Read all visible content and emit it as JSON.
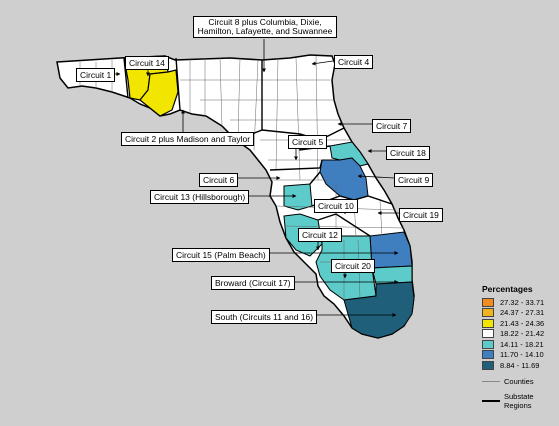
{
  "legend": {
    "title": "Percentages",
    "items": [
      {
        "range": "27.32 - 33.71",
        "color": "#f28c1c"
      },
      {
        "range": "24.37 - 27.31",
        "color": "#f0b41c"
      },
      {
        "range": "21.43 - 24.36",
        "color": "#f2e600"
      },
      {
        "range": "18.22 - 21.42",
        "color": "#ffffff"
      },
      {
        "range": "14.11 - 18.21",
        "color": "#5ccbc9"
      },
      {
        "range": "11.70 - 14.10",
        "color": "#3f7fbf"
      },
      {
        "range": "8.84 - 11.69",
        "color": "#1f5f7a"
      }
    ],
    "counties_label": "Counties",
    "substate_label": "Substate Regions"
  },
  "regions": [
    {
      "label": "Circuit 1",
      "level": "18.22 - 21.42"
    },
    {
      "label": "Circuit 14",
      "level": "21.43 - 24.36"
    },
    {
      "label": "Circuit 2 plus Madison and Taylor",
      "level": "21.43 - 24.36"
    },
    {
      "label": "Circuit 8 plus Columbia, Dixie, Hamilton, Lafayette, and Suwannee",
      "level": "18.22 - 21.42"
    },
    {
      "label": "Circuit 4",
      "level": "18.22 - 21.42"
    },
    {
      "label": "Circuit 7",
      "level": "18.22 - 21.42"
    },
    {
      "label": "Circuit 5",
      "level": "18.22 - 21.42"
    },
    {
      "label": "Circuit 18",
      "level": "14.11 - 18.21"
    },
    {
      "label": "Circuit 9",
      "level": "11.70 - 14.10"
    },
    {
      "label": "Circuit 6",
      "level": "18.22 - 21.42"
    },
    {
      "label": "Circuit 13 (Hillsborough)",
      "level": "14.11 - 18.21"
    },
    {
      "label": "Circuit 10",
      "level": "18.22 - 21.42"
    },
    {
      "label": "Circuit 19",
      "level": "18.22 - 21.42"
    },
    {
      "label": "Circuit 12",
      "level": "14.11 - 18.21"
    },
    {
      "label": "Circuit 15 (Palm Beach)",
      "level": "11.70 - 14.10"
    },
    {
      "label": "Circuit 20",
      "level": "14.11 - 18.21"
    },
    {
      "label": "Broward (Circuit 17)",
      "level": "14.11 - 18.21"
    },
    {
      "label": "South (Circuits 11 and 16)",
      "level": "8.84 - 11.69"
    }
  ],
  "labels": {
    "c1": "Circuit 1",
    "c14": "Circuit 14",
    "c2": "Circuit 2 plus Madison and Taylor",
    "c8_line1": "Circuit 8 plus Columbia, Dixie,",
    "c8_line2": "Hamilton, Lafayette, and Suwannee",
    "c4": "Circuit 4",
    "c7": "Circuit 7",
    "c5": "Circuit 5",
    "c18": "Circuit 18",
    "c9": "Circuit 9",
    "c6": "Circuit 6",
    "c13": "Circuit 13 (Hillsborough)",
    "c10": "Circuit 10",
    "c19": "Circuit 19",
    "c12": "Circuit 12",
    "c15": "Circuit 15 (Palm Beach)",
    "c20": "Circuit 20",
    "c17": "Broward (Circuit 17)",
    "south": "South (Circuits 11 and 16)"
  },
  "colors": {
    "background": "#cfcfcf",
    "white": "#ffffff",
    "yellow": "#f2e600",
    "teal": "#5ccbc9",
    "blue": "#3f7fbf",
    "darkblue": "#1f5f7a"
  }
}
